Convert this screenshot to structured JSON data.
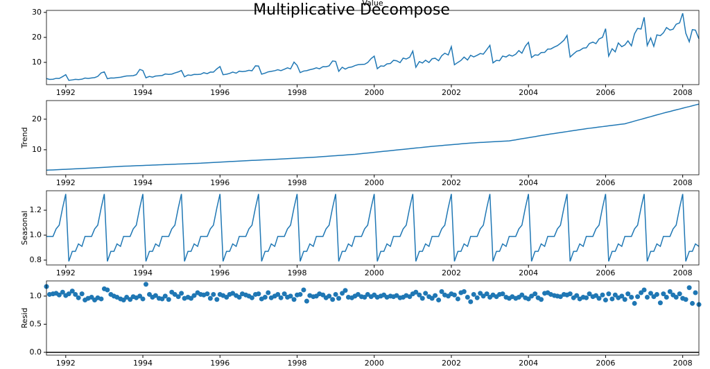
{
  "title": "Multiplicative Decompose",
  "x": [
    1991.5,
    1991.58,
    1991.67,
    1991.75,
    1991.83,
    1991.92,
    1992,
    1992.08,
    1992.17,
    1992.25,
    1992.33,
    1992.42,
    1992.5,
    1992.58,
    1992.67,
    1992.75,
    1992.83,
    1992.92,
    1993,
    1993.08,
    1993.17,
    1993.25,
    1993.33,
    1993.42,
    1993.5,
    1993.58,
    1993.67,
    1993.75,
    1993.83,
    1993.92,
    1994,
    1994.08,
    1994.17,
    1994.25,
    1994.33,
    1994.42,
    1994.5,
    1994.58,
    1994.67,
    1994.75,
    1994.83,
    1994.92,
    1995,
    1995.08,
    1995.17,
    1995.25,
    1995.33,
    1995.42,
    1995.5,
    1995.58,
    1995.67,
    1995.75,
    1995.83,
    1995.92,
    1996,
    1996.08,
    1996.17,
    1996.25,
    1996.33,
    1996.42,
    1996.5,
    1996.58,
    1996.67,
    1996.75,
    1996.83,
    1996.92,
    1997,
    1997.08,
    1997.17,
    1997.25,
    1997.33,
    1997.42,
    1997.5,
    1997.58,
    1997.67,
    1997.75,
    1997.83,
    1997.92,
    1998,
    1998.08,
    1998.17,
    1998.25,
    1998.33,
    1998.42,
    1998.5,
    1998.58,
    1998.67,
    1998.75,
    1998.83,
    1998.92,
    1999,
    1999.08,
    1999.17,
    1999.25,
    1999.33,
    1999.42,
    1999.5,
    1999.58,
    1999.67,
    1999.75,
    1999.83,
    1999.92,
    2000,
    2000.08,
    2000.17,
    2000.25,
    2000.33,
    2000.42,
    2000.5,
    2000.58,
    2000.67,
    2000.75,
    2000.83,
    2000.92,
    2001,
    2001.08,
    2001.17,
    2001.25,
    2001.33,
    2001.42,
    2001.5,
    2001.58,
    2001.67,
    2001.75,
    2001.83,
    2001.92,
    2002,
    2002.08,
    2002.17,
    2002.25,
    2002.33,
    2002.42,
    2002.5,
    2002.58,
    2002.67,
    2002.75,
    2002.83,
    2002.92,
    2003,
    2003.08,
    2003.17,
    2003.25,
    2003.33,
    2003.42,
    2003.5,
    2003.58,
    2003.67,
    2003.75,
    2003.83,
    2003.92,
    2004,
    2004.08,
    2004.17,
    2004.25,
    2004.33,
    2004.42,
    2004.5,
    2004.58,
    2004.67,
    2004.75,
    2004.83,
    2004.92,
    2005,
    2005.08,
    2005.17,
    2005.25,
    2005.33,
    2005.42,
    2005.5,
    2005.58,
    2005.67,
    2005.75,
    2005.83,
    2005.92,
    2006,
    2006.08,
    2006.17,
    2006.25,
    2006.33,
    2006.42,
    2006.5,
    2006.58,
    2006.67,
    2006.75,
    2006.83,
    2006.92,
    2007,
    2007.08,
    2007.17,
    2007.25,
    2007.33,
    2007.42,
    2007.5,
    2007.58,
    2007.67,
    2007.75,
    2007.83,
    2007.92,
    2008,
    2008.08,
    2008.17,
    2008.25,
    2008.33,
    2008.42
  ],
  "xlim": [
    1991.5,
    2008.42
  ],
  "xticks": [
    1992,
    1994,
    1996,
    1998,
    2000,
    2002,
    2004,
    2006,
    2008
  ],
  "chart_data": [
    {
      "type": "line",
      "title": "Value",
      "color": "#1f77b4",
      "ylim": [
        1.1,
        30.8
      ],
      "yticks": [
        10,
        20,
        30
      ],
      "values": [
        3.53,
        3.18,
        3.25,
        3.61,
        3.57,
        4.31,
        5.09,
        2.81,
        2.99,
        3.2,
        3.13,
        3.27,
        3.74,
        3.56,
        3.78,
        3.92,
        4.39,
        5.81,
        6.19,
        3.45,
        3.77,
        3.73,
        3.91,
        4.05,
        4.32,
        4.56,
        4.61,
        4.67,
        5.09,
        7.18,
        6.73,
        3.84,
        4.39,
        4.08,
        4.54,
        4.65,
        4.75,
        5.35,
        5.2,
        5.3,
        5.77,
        6.2,
        6.75,
        4.22,
        4.95,
        4.82,
        5.19,
        5.17,
        5.26,
        5.86,
        5.49,
        6.12,
        6.09,
        7.42,
        8.33,
        5.07,
        5.26,
        5.6,
        6.11,
        5.69,
        6.49,
        6.3,
        6.47,
        6.83,
        6.65,
        8.61,
        8.52,
        5.28,
        5.71,
        6.21,
        6.41,
        6.67,
        7.05,
        6.7,
        7.25,
        7.82,
        7.4,
        10.1,
        8.8,
        5.92,
        6.53,
        6.68,
        7.06,
        7.38,
        7.81,
        7.43,
        8.28,
        8.26,
        8.6,
        10.56,
        10.39,
        6.42,
        8.06,
        7.3,
        7.94,
        8.17,
        8.72,
        9.07,
        9.18,
        9.25,
        9.93,
        11.53,
        12.51,
        7.46,
        8.59,
        8.47,
        9.39,
        9.56,
        10.83,
        10.64,
        9.91,
        11.71,
        11.34,
        12.08,
        14.5,
        8.05,
        10.31,
        9.75,
        10.85,
        9.96,
        11.44,
        11.66,
        10.65,
        12.65,
        13.67,
        12.97,
        16.3,
        9.05,
        10.0,
        10.79,
        12.11,
        10.95,
        12.84,
        12.2,
        12.85,
        13.54,
        13.29,
        15.13,
        16.83,
        9.8,
        10.82,
        10.65,
        12.51,
        12.16,
        13.0,
        12.52,
        13.27,
        14.73,
        13.67,
        16.5,
        18.0,
        11.94,
        13.0,
        12.88,
        13.94,
        13.99,
        15.34,
        15.37,
        16.14,
        16.69,
        17.64,
        18.87,
        20.78,
        12.15,
        13.4,
        14.46,
        14.8,
        15.71,
        15.83,
        17.55,
        18.1,
        17.5,
        19.35,
        20.03,
        23.49,
        12.54,
        15.47,
        14.23,
        17.78,
        16.29,
        16.98,
        18.61,
        16.62,
        21.43,
        23.58,
        23.33,
        28.04,
        16.76,
        19.79,
        16.43,
        21.0,
        20.68,
        21.83,
        23.93,
        22.93,
        23.26,
        25.25,
        25.81,
        29.67,
        21.65,
        18.26,
        23.11,
        22.91,
        19.43
      ]
    },
    {
      "type": "line",
      "ylabel": "Trend",
      "color": "#1f77b4",
      "ylim": [
        1.8,
        26.1
      ],
      "yticks": [
        10,
        20
      ],
      "values": [
        3.3,
        3.35,
        3.4,
        3.45,
        3.5,
        3.55,
        3.6,
        3.65,
        3.7,
        3.75,
        3.8,
        3.85,
        3.9,
        3.96,
        4.02,
        4.08,
        4.13,
        4.19,
        4.25,
        4.31,
        4.37,
        4.43,
        4.48,
        4.54,
        4.6,
        4.64,
        4.68,
        4.73,
        4.77,
        4.81,
        4.85,
        4.89,
        4.93,
        4.98,
        5.02,
        5.06,
        5.1,
        5.14,
        5.18,
        5.23,
        5.27,
        5.31,
        5.35,
        5.39,
        5.43,
        5.48,
        5.52,
        5.56,
        5.6,
        5.66,
        5.72,
        5.78,
        5.83,
        5.89,
        5.95,
        6.01,
        6.07,
        6.13,
        6.18,
        6.24,
        6.3,
        6.35,
        6.4,
        6.45,
        6.5,
        6.55,
        6.6,
        6.65,
        6.7,
        6.75,
        6.8,
        6.85,
        6.9,
        6.96,
        7.02,
        7.08,
        7.13,
        7.19,
        7.25,
        7.31,
        7.37,
        7.43,
        7.48,
        7.54,
        7.6,
        7.68,
        7.75,
        7.83,
        7.9,
        7.98,
        8.05,
        8.13,
        8.2,
        8.28,
        8.35,
        8.43,
        8.5,
        8.61,
        8.72,
        8.83,
        8.93,
        9.04,
        9.15,
        9.26,
        9.37,
        9.48,
        9.58,
        9.69,
        9.8,
        9.91,
        10.02,
        10.13,
        10.23,
        10.34,
        10.45,
        10.56,
        10.67,
        10.78,
        10.88,
        10.99,
        11.1,
        11.19,
        11.28,
        11.38,
        11.47,
        11.56,
        11.65,
        11.74,
        11.83,
        11.93,
        12.02,
        12.11,
        12.2,
        12.26,
        12.32,
        12.38,
        12.43,
        12.49,
        12.55,
        12.61,
        12.67,
        12.73,
        12.78,
        12.84,
        12.9,
        13.08,
        13.25,
        13.43,
        13.6,
        13.78,
        13.95,
        14.13,
        14.3,
        14.48,
        14.65,
        14.83,
        15.0,
        15.16,
        15.32,
        15.48,
        15.63,
        15.79,
        15.95,
        16.11,
        16.27,
        16.43,
        16.58,
        16.74,
        16.9,
        17.03,
        17.17,
        17.3,
        17.43,
        17.57,
        17.7,
        17.83,
        17.97,
        18.1,
        18.23,
        18.37,
        18.5,
        18.79,
        19.08,
        19.38,
        19.67,
        19.96,
        20.25,
        20.54,
        20.83,
        21.13,
        21.42,
        21.71,
        22.0,
        22.27,
        22.53,
        22.8,
        23.07,
        23.33,
        23.6,
        23.87,
        24.13,
        24.4,
        24.67,
        24.93
      ]
    },
    {
      "type": "line",
      "ylabel": "Seasonal",
      "color": "#1f77b4",
      "ylim": [
        0.761,
        1.356
      ],
      "yticks": [
        {
          "value": 0.8,
          "label": "0.8"
        },
        {
          "value": 1.0,
          "label": "1.0"
        },
        {
          "value": 1.2,
          "label": "1.2"
        }
      ],
      "values": [
        0.99,
        0.99,
        0.99,
        1.05,
        1.08,
        1.22,
        1.33,
        0.79,
        0.87,
        0.87,
        0.93,
        0.91,
        0.99,
        0.99,
        0.99,
        1.05,
        1.08,
        1.22,
        1.33,
        0.79,
        0.87,
        0.87,
        0.93,
        0.91,
        0.99,
        0.99,
        0.99,
        1.05,
        1.08,
        1.22,
        1.33,
        0.79,
        0.87,
        0.87,
        0.93,
        0.91,
        0.99,
        0.99,
        0.99,
        1.05,
        1.08,
        1.22,
        1.33,
        0.79,
        0.87,
        0.87,
        0.93,
        0.91,
        0.99,
        0.99,
        0.99,
        1.05,
        1.08,
        1.22,
        1.33,
        0.79,
        0.87,
        0.87,
        0.93,
        0.91,
        0.99,
        0.99,
        0.99,
        1.05,
        1.08,
        1.22,
        1.33,
        0.79,
        0.87,
        0.87,
        0.93,
        0.91,
        0.99,
        0.99,
        0.99,
        1.05,
        1.08,
        1.22,
        1.33,
        0.79,
        0.87,
        0.87,
        0.93,
        0.91,
        0.99,
        0.99,
        0.99,
        1.05,
        1.08,
        1.22,
        1.33,
        0.79,
        0.87,
        0.87,
        0.93,
        0.91,
        0.99,
        0.99,
        0.99,
        1.05,
        1.08,
        1.22,
        1.33,
        0.79,
        0.87,
        0.87,
        0.93,
        0.91,
        0.99,
        0.99,
        0.99,
        1.05,
        1.08,
        1.22,
        1.33,
        0.79,
        0.87,
        0.87,
        0.93,
        0.91,
        0.99,
        0.99,
        0.99,
        1.05,
        1.08,
        1.22,
        1.33,
        0.79,
        0.87,
        0.87,
        0.93,
        0.91,
        0.99,
        0.99,
        0.99,
        1.05,
        1.08,
        1.22,
        1.33,
        0.79,
        0.87,
        0.87,
        0.93,
        0.91,
        0.99,
        0.99,
        0.99,
        1.05,
        1.08,
        1.22,
        1.33,
        0.79,
        0.87,
        0.87,
        0.93,
        0.91,
        0.99,
        0.99,
        0.99,
        1.05,
        1.08,
        1.22,
        1.33,
        0.79,
        0.87,
        0.87,
        0.93,
        0.91,
        0.99,
        0.99,
        0.99,
        1.05,
        1.08,
        1.22,
        1.33,
        0.79,
        0.87,
        0.87,
        0.93,
        0.91,
        0.99,
        0.99,
        0.99,
        1.05,
        1.08,
        1.22,
        1.33,
        0.79,
        0.87,
        0.87,
        0.93,
        0.91,
        0.99,
        0.99,
        0.99,
        1.05,
        1.08,
        1.22,
        1.33,
        0.79,
        0.87,
        0.87,
        0.93,
        0.91
      ]
    },
    {
      "type": "scatter",
      "ylabel": "Resid",
      "color": "#1f77b4",
      "ylim": [
        -0.05,
        1.27
      ],
      "hline": 0,
      "yticks": [
        {
          "value": 0.0,
          "label": "0.0"
        },
        {
          "value": 0.5,
          "label": "0.5"
        },
        {
          "value": 1.0,
          "label": "1.0"
        }
      ],
      "values": [
        1.17,
        1.03,
        1.04,
        1.05,
        1.02,
        1.07,
        1.01,
        1.04,
        1.09,
        1.03,
        0.97,
        1.04,
        0.93,
        0.96,
        0.98,
        0.93,
        0.97,
        0.95,
        1.13,
        1.11,
        1.03,
        1.0,
        0.98,
        0.95,
        0.93,
        0.98,
        0.94,
        0.99,
        0.97,
        1.0,
        0.95,
        1.21,
        1.03,
        0.98,
        1.01,
        0.96,
        0.95,
        1.0,
        0.94,
        1.07,
        1.03,
        0.99,
        1.05,
        0.96,
        0.98,
        0.96,
        1.01,
        1.06,
        1.03,
        1.02,
        1.04,
        0.96,
        1.03,
        0.94,
        1.03,
        1.01,
        0.98,
        1.03,
        1.05,
        1.01,
        0.98,
        1.04,
        1.02,
        1.0,
        0.97,
        1.03,
        1.04,
        0.95,
        0.98,
        1.06,
        0.97,
        1.0,
        1.03,
        0.97,
        1.04,
        0.98,
        1.0,
        0.94,
        1.02,
        1.03,
        1.11,
        0.91,
        1.01,
        0.99,
        1.0,
        1.04,
        1.02,
        0.97,
        1.0,
        0.94,
        1.03,
        0.96,
        1.05,
        1.1,
        0.98,
        0.97,
        1.0,
        1.03,
        0.99,
        0.98,
        1.03,
        0.99,
        1.02,
        0.98,
        1.0,
        1.02,
        0.98,
        1.0,
        0.99,
        1.01,
        0.97,
        0.98,
        1.01,
        0.99,
        1.04,
        1.07,
        1.02,
        0.96,
        1.05,
        0.99,
        0.96,
        1.01,
        0.93,
        1.08,
        1.02,
        1.0,
        1.04,
        1.02,
        0.95,
        1.06,
        1.08,
        0.98,
        0.9,
        1.03,
        0.97,
        1.05,
        1.0,
        1.04,
        0.98,
        1.02,
        0.99,
        1.03,
        1.04,
        0.98,
        0.96,
        0.99,
        0.96,
        0.98,
        1.02,
        0.97,
        0.95,
        1.0,
        1.04,
        0.97,
        0.94,
        1.05,
        1.06,
        1.03,
        1.01,
        1.0,
        0.99,
        1.03,
        1.02,
        1.04,
        0.97,
        1.01,
        0.95,
        0.98,
        0.97,
        1.04,
        0.99,
        1.01,
        0.96,
        1.02,
        0.93,
        1.04,
        0.95,
        1.02,
        0.97,
        1.0,
        0.94,
        1.04,
        0.98,
        0.87,
        0.99,
        1.06,
        1.11,
        0.98,
        1.05,
        0.99,
        1.03,
        0.88,
        1.04,
        0.98,
        1.08,
        1.02,
        0.98,
        1.04,
        0.96,
        0.94,
        1.15,
        0.87,
        1.06,
        0.85
      ]
    }
  ]
}
